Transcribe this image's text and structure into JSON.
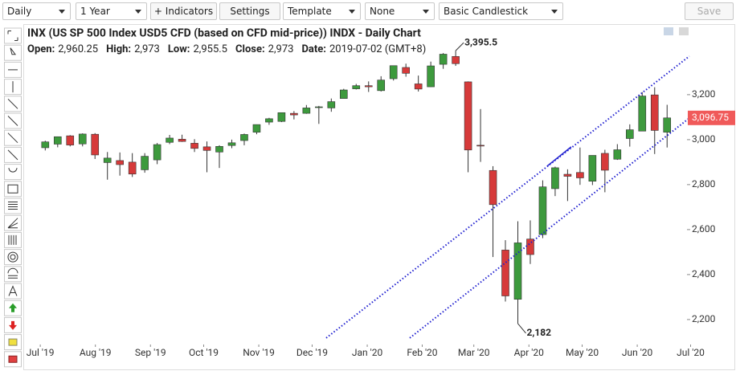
{
  "toolbar": {
    "interval": "Daily",
    "range": "1 Year",
    "indicators": "+ Indicators",
    "settings": "Settings",
    "template": "Template",
    "overlay": "None",
    "style": "Basic Candlestick",
    "save": "Save"
  },
  "header": {
    "title": "INX (US SP 500 Index USD5 CFD (based on CFD mid-price)) INDX - Daily Chart",
    "fields": [
      {
        "label": "Open:",
        "value": "2,960.25"
      },
      {
        "label": "High:",
        "value": "2,973"
      },
      {
        "label": "Low:",
        "value": "2,955.5"
      },
      {
        "label": "Close:",
        "value": "2,973"
      },
      {
        "label": "Date:",
        "value": "2019-07-02 (GMT+8)"
      }
    ]
  },
  "chart_data": {
    "type": "candlestick",
    "x": [
      0,
      1,
      2,
      3,
      4,
      5,
      6,
      7,
      8,
      9,
      10,
      11,
      12,
      13,
      14,
      15,
      16,
      17,
      18,
      19,
      20,
      21,
      22,
      23,
      24,
      25,
      26,
      27,
      28,
      29,
      30,
      31,
      32,
      33,
      34,
      35,
      36,
      37,
      38,
      39,
      40,
      41,
      42,
      43,
      44,
      45,
      46,
      47,
      48,
      49,
      50
    ],
    "open": [
      2964,
      2980,
      3017,
      2981,
      3024,
      2898,
      2907,
      2900,
      2866,
      2910,
      2988,
      3002,
      2984,
      2968,
      2945,
      2974,
      2996,
      3033,
      3078,
      3081,
      3117,
      3117,
      3144,
      3141,
      3183,
      3226,
      3240,
      3218,
      3271,
      3321,
      3248,
      3235,
      3335,
      3370,
      3257,
      2975,
      2863,
      2509,
      2290,
      2558,
      2578,
      2782,
      2846,
      2854,
      2815,
      2939,
      2913,
      3005,
      3038,
      3199,
      3033
    ],
    "high": [
      2995,
      3014,
      3020,
      3028,
      3029,
      2945,
      2943,
      2940,
      2940,
      2985,
      3021,
      3022,
      3002,
      2992,
      2975,
      3000,
      3027,
      3067,
      3097,
      3121,
      3127,
      3154,
      3150,
      3183,
      3226,
      3248,
      3259,
      3282,
      3329,
      3338,
      3285,
      3347,
      3385,
      3395.5,
      3259,
      3136,
      2882,
      2553,
      2637,
      2641,
      2819,
      2880,
      2868,
      2965,
      2930,
      2955,
      2980,
      3068,
      3211,
      3233,
      3155
    ],
    "low": [
      2952,
      2966,
      2970,
      2970,
      2914,
      2822,
      2840,
      2834,
      2853,
      2891,
      2980,
      2990,
      2945,
      2855,
      2874,
      2962,
      2975,
      3024,
      3066,
      3078,
      3090,
      3115,
      3070,
      3124,
      3183,
      3223,
      3212,
      3214,
      3263,
      3280,
      3214,
      3234,
      3315,
      3328,
      2855,
      2901,
      2478,
      2280,
      2182,
      2447,
      2562,
      2749,
      2727,
      2799,
      2798,
      2766,
      2910,
      2969,
      3038,
      2936,
      2965
    ],
    "close": [
      2990,
      3013,
      2976,
      3025,
      2932,
      2918,
      2889,
      2847,
      2926,
      2978,
      3007,
      2992,
      2961,
      2952,
      2970,
      2986,
      3023,
      3067,
      3093,
      3120,
      3110,
      3141,
      3146,
      3169,
      3221,
      3240,
      3235,
      3265,
      3329,
      3295,
      3225,
      3328,
      3380,
      3338,
      2954,
      2972,
      2711,
      2305,
      2541,
      2489,
      2790,
      2875,
      2837,
      2830,
      2930,
      2864,
      2955,
      3044,
      3194,
      3041,
      3096.75
    ],
    "up_color": "#3d9a3d",
    "down_color": "#d63a3a",
    "xlim": [
      -1.7,
      51.6
    ],
    "xticks": [
      {
        "value": -0.4,
        "label": "Jul '19"
      },
      {
        "value": 4.03,
        "label": "Aug '19"
      },
      {
        "value": 8.46,
        "label": "Sep '19"
      },
      {
        "value": 12.74,
        "label": "Oct '19"
      },
      {
        "value": 17.17,
        "label": "Nov '19"
      },
      {
        "value": 21.46,
        "label": "Dec '19"
      },
      {
        "value": 25.89,
        "label": "Jan '20"
      },
      {
        "value": 30.31,
        "label": "Feb '20"
      },
      {
        "value": 34.46,
        "label": "Mar '20"
      },
      {
        "value": 38.89,
        "label": "Apr '20"
      },
      {
        "value": 43.17,
        "label": "May '20"
      },
      {
        "value": 47.6,
        "label": "Jun '20"
      },
      {
        "value": 51.89,
        "label": "Jul '20"
      }
    ],
    "ylim": [
      2089,
      3496
    ],
    "yticks": [
      {
        "value": 2200,
        "label": "2,200"
      },
      {
        "value": 2400,
        "label": "2,400"
      },
      {
        "value": 2600,
        "label": "2,600"
      },
      {
        "value": 2800,
        "label": "2,800"
      },
      {
        "value": 3000,
        "label": "3,000"
      },
      {
        "value": 3200,
        "label": "3,200"
      }
    ],
    "last_price": {
      "value": 3096.75,
      "label": "3,096.75"
    },
    "annotations": [
      {
        "x": 33,
        "value": 3395.5,
        "label": "3,395.5"
      },
      {
        "x": 38,
        "value": 2182,
        "label": "2,182"
      }
    ],
    "trendlines": [
      {
        "x": [
          29.31,
          51.79
        ],
        "values": [
          2118,
          3096
        ],
        "style": "dotted"
      },
      {
        "x": [
          22.59,
          51.79
        ],
        "values": [
          2118,
          3371
        ],
        "style": "dotted"
      },
      {
        "x": [
          40.35,
          42.29
        ],
        "values": [
          2882,
          2968
        ],
        "style": "solid"
      }
    ],
    "trendline_color": "#2020d0"
  }
}
